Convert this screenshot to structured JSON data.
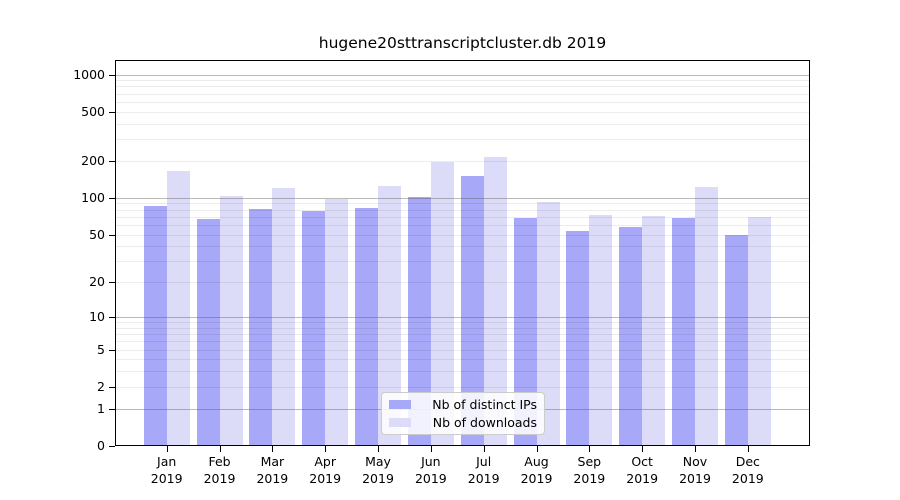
{
  "title": "hugene20sttranscriptcluster.db 2019",
  "chart_data": {
    "type": "bar",
    "title": "hugene20sttranscriptcluster.db 2019",
    "xlabel": "",
    "ylabel": "",
    "y_scale": "log1p",
    "ylim": [
      0,
      1310
    ],
    "y_ticks": [
      1000,
      500,
      200,
      100,
      50,
      20,
      10,
      5,
      2,
      1,
      0
    ],
    "grid": {
      "major": [
        1,
        10,
        100,
        1000
      ],
      "minor": [
        2,
        3,
        4,
        5,
        6,
        7,
        8,
        9,
        20,
        30,
        40,
        50,
        60,
        70,
        80,
        90,
        200,
        300,
        400,
        500,
        600,
        700,
        800,
        900
      ]
    },
    "categories": [
      {
        "month": "Jan",
        "year": "2019"
      },
      {
        "month": "Feb",
        "year": "2019"
      },
      {
        "month": "Mar",
        "year": "2019"
      },
      {
        "month": "Apr",
        "year": "2019"
      },
      {
        "month": "May",
        "year": "2019"
      },
      {
        "month": "Jun",
        "year": "2019"
      },
      {
        "month": "Jul",
        "year": "2019"
      },
      {
        "month": "Aug",
        "year": "2019"
      },
      {
        "month": "Sep",
        "year": "2019"
      },
      {
        "month": "Oct",
        "year": "2019"
      },
      {
        "month": "Nov",
        "year": "2019"
      },
      {
        "month": "Dec",
        "year": "2019"
      }
    ],
    "series": [
      {
        "name": "Nb of distinct IPs",
        "color": "#a8a8f8",
        "values": [
          86,
          67,
          81,
          78,
          83,
          102,
          152,
          69,
          54,
          58,
          69,
          50
        ]
      },
      {
        "name": "Nb of downloads",
        "color": "#dcdcf8",
        "values": [
          165,
          104,
          121,
          98,
          125,
          195,
          215,
          92,
          73,
          71,
          122,
          70
        ]
      }
    ],
    "legend_position": "bottom-center"
  }
}
